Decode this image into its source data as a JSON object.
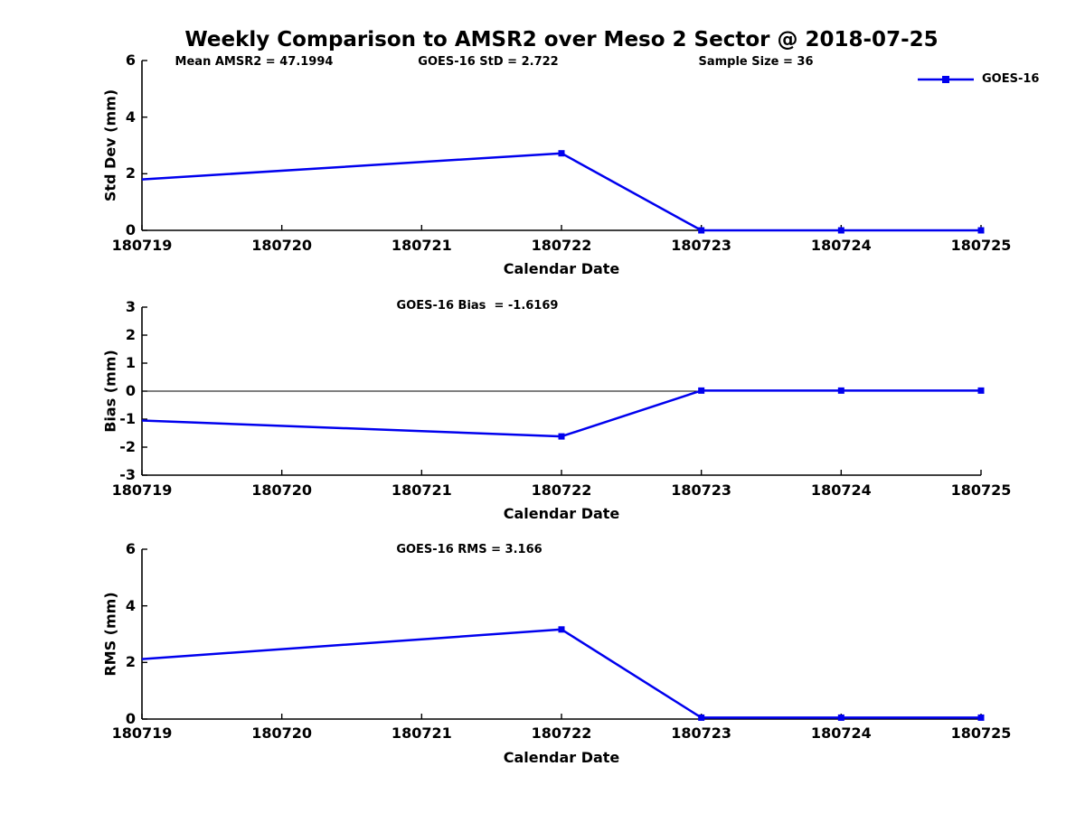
{
  "title": "Weekly Comparison to AMSR2 over Meso 2 Sector @ 2018-07-25",
  "colors": {
    "line": "#0000EE",
    "axis": "#000000",
    "background": "#ffffff"
  },
  "legend": {
    "label": "GOES-16",
    "position": "top-right-inside"
  },
  "chart_data": [
    {
      "type": "line",
      "name": "std-dev",
      "ylabel": "Std Dev (mm)",
      "xlabel": "Calendar Date",
      "ylim": [
        0,
        6
      ],
      "yticks": [
        0,
        2,
        4,
        6
      ],
      "categories": [
        "180719",
        "180720",
        "180721",
        "180722",
        "180723",
        "180724",
        "180725"
      ],
      "grid": false,
      "zero_line": false,
      "series": [
        {
          "name": "GOES-16",
          "x": [
            "180719",
            "180722",
            "180723",
            "180724",
            "180725"
          ],
          "values": [
            1.8,
            2.722,
            0,
            0,
            0
          ],
          "markers": [
            false,
            true,
            true,
            true,
            true
          ]
        }
      ],
      "annotations": [
        {
          "text": "Mean AMSR2 = 47.1994"
        },
        {
          "text": "GOES-16 StD = 2.722"
        },
        {
          "text": "Sample Size = 36"
        }
      ]
    },
    {
      "type": "line",
      "name": "bias",
      "ylabel": "Bias (mm)",
      "xlabel": "Calendar Date",
      "ylim": [
        -3,
        3
      ],
      "yticks": [
        -3,
        -2,
        -1,
        0,
        1,
        2,
        3
      ],
      "categories": [
        "180719",
        "180720",
        "180721",
        "180722",
        "180723",
        "180724",
        "180725"
      ],
      "grid": false,
      "zero_line": true,
      "series": [
        {
          "name": "GOES-16",
          "x": [
            "180719",
            "180722",
            "180723",
            "180724",
            "180725"
          ],
          "values": [
            -1.05,
            -1.6169,
            0.02,
            0.02,
            0.02
          ],
          "markers": [
            false,
            true,
            true,
            true,
            true
          ]
        }
      ],
      "annotations": [
        {
          "text": "GOES-16 Bias  = -1.6169"
        }
      ]
    },
    {
      "type": "line",
      "name": "rms",
      "ylabel": "RMS (mm)",
      "xlabel": "Calendar Date",
      "ylim": [
        0,
        6
      ],
      "yticks": [
        0,
        2,
        4,
        6
      ],
      "categories": [
        "180719",
        "180720",
        "180721",
        "180722",
        "180723",
        "180724",
        "180725"
      ],
      "grid": false,
      "zero_line": false,
      "series": [
        {
          "name": "GOES-16",
          "x": [
            "180719",
            "180722",
            "180723",
            "180724",
            "180725"
          ],
          "values": [
            2.12,
            3.166,
            0.05,
            0.05,
            0.05
          ],
          "markers": [
            false,
            true,
            true,
            true,
            true
          ]
        }
      ],
      "annotations": [
        {
          "text": "GOES-16 RMS = 3.166"
        }
      ]
    }
  ]
}
